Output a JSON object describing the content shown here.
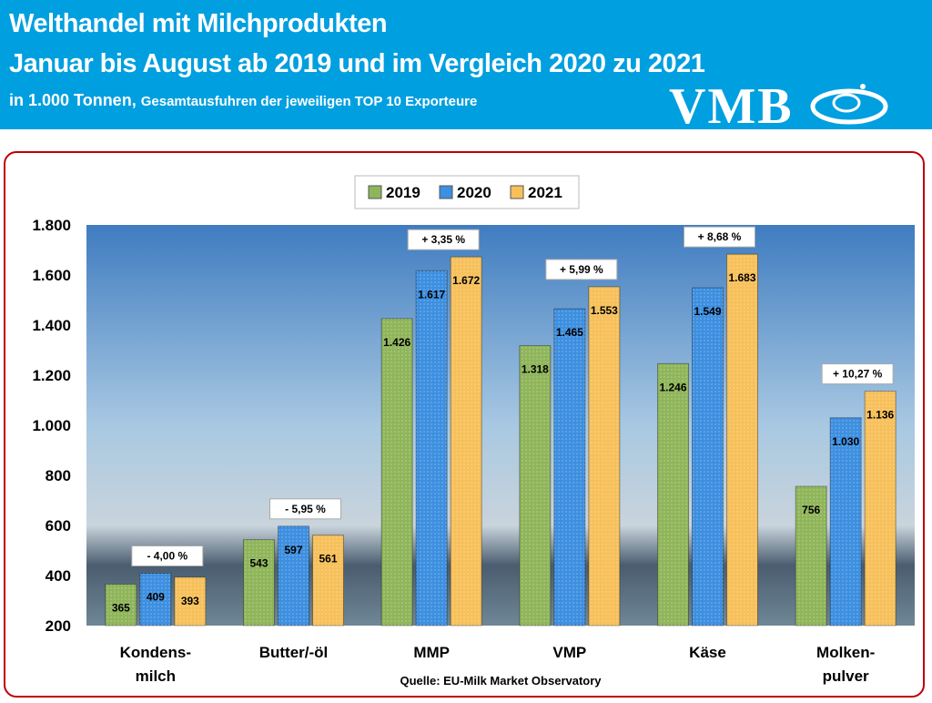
{
  "header": {
    "title": "Welthandel mit Milchprodukten",
    "subtitle": "Januar bis August ab 2019 und im Vergleich 2020 zu 2021",
    "unit": "in 1.000 Tonnen,",
    "note": "Gesamtausfuhren der jeweiligen TOP 10 Exporteure",
    "logo": "VMB"
  },
  "chart_data": {
    "type": "bar",
    "categories": [
      "Kondens-\nmilch",
      "Butter/-öl",
      "MMP",
      "VMP",
      "Käse",
      "Molken-\npulver"
    ],
    "series": [
      {
        "name": "2019",
        "values": [
          365,
          543,
          1426,
          1318,
          1246,
          756
        ],
        "color": "#8fb55a"
      },
      {
        "name": "2020",
        "values": [
          409,
          597,
          1617,
          1465,
          1549,
          1030
        ],
        "color": "#3d8fe0"
      },
      {
        "name": "2021",
        "values": [
          393,
          561,
          1672,
          1553,
          1683,
          1136
        ],
        "color": "#f7c05a"
      }
    ],
    "value_labels": [
      [
        "365",
        "409",
        "393"
      ],
      [
        "543",
        "597",
        "561"
      ],
      [
        "1.426",
        "1.617",
        "1.672"
      ],
      [
        "1.318",
        "1.465",
        "1.553"
      ],
      [
        "1.246",
        "1.549",
        "1.683"
      ],
      [
        "756",
        "1.030",
        "1.136"
      ]
    ],
    "change_labels": [
      "- 4,00 %",
      "- 5,95 %",
      "+ 3,35 %",
      "+ 5,99 %",
      "+ 8,68 %",
      "+ 10,27 %"
    ],
    "ylim": [
      200,
      1800
    ],
    "yticks": [
      200,
      400,
      600,
      800,
      1000,
      1200,
      1400,
      1600,
      1800
    ],
    "ytick_labels": [
      "200",
      "400",
      "600",
      "800",
      "1.000",
      "1.200",
      "1.400",
      "1.600",
      "1.800"
    ],
    "legend": "top-center",
    "source": "Quelle: EU-Milk Market Observatory"
  }
}
